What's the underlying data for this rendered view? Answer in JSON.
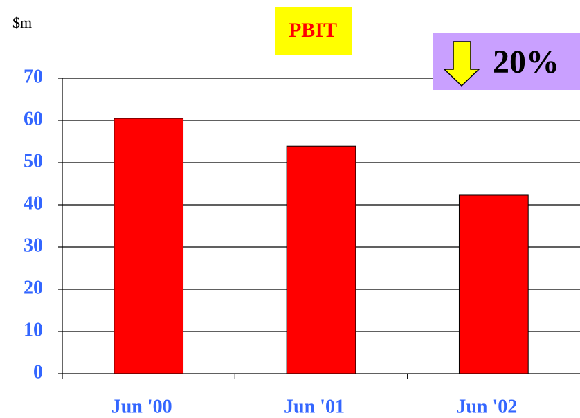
{
  "chart_data": {
    "type": "bar",
    "title": "PBIT",
    "y_axis_label": "$m",
    "annotation": "20%",
    "categories": [
      "Jun '00",
      "Jun '01",
      "Jun '02"
    ],
    "values": [
      60.5,
      53.9,
      42.3
    ],
    "color": "#ff0000",
    "ylim": [
      0,
      70
    ],
    "yticks": [
      0,
      10,
      20,
      30,
      40,
      50,
      60,
      70
    ],
    "grid": true
  }
}
